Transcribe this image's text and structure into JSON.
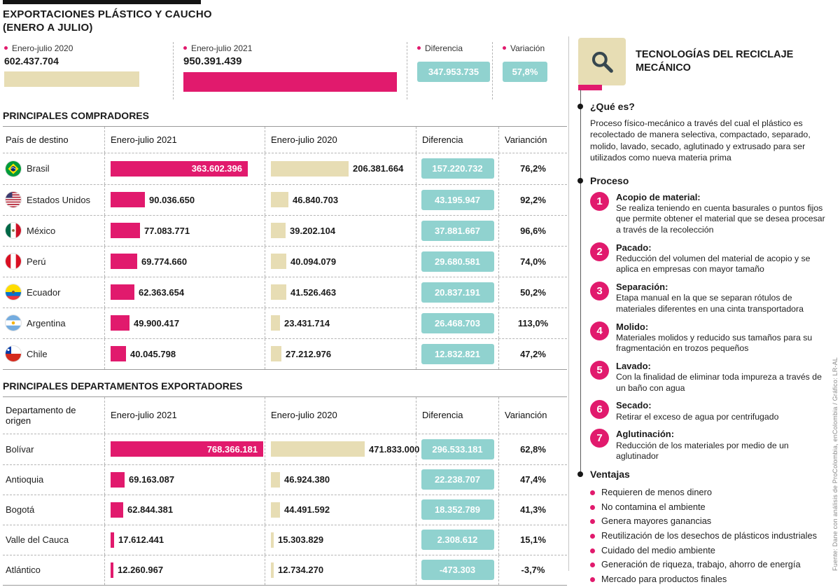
{
  "colors": {
    "pink": "#e11a6d",
    "beige": "#e7ddb4",
    "teal": "#90d2cf"
  },
  "header": {
    "title": "EXPORTACIONES PLÁSTICO Y CAUCHO",
    "subtitle": "(ENERO A JULIO)"
  },
  "summary": [
    {
      "label": "Enero-julio 2020",
      "value": "602.437.704",
      "num": 602437704
    },
    {
      "label": "Enero-julio 2021",
      "value": "950.391.439",
      "num": 950391439
    },
    {
      "label": "Diferencia",
      "value": "347.953.735"
    },
    {
      "label": "Variación",
      "value": "57,8%"
    }
  ],
  "tables": [
    {
      "title": "PRINCIPALES COMPRADORES",
      "headers": {
        "label": "País de destino",
        "c2021": "Enero-julio 2021",
        "c2020": "Enero-julio 2020",
        "diff": "Diferencia",
        "var": "Varianción"
      },
      "scale": {
        "max": 363602396,
        "maxw": 196
      },
      "rows": [
        {
          "flag": "brasil",
          "label": "Brasil",
          "v2021": "363.602.396",
          "n2021": 363602396,
          "v2020": "206.381.664",
          "n2020": 206381664,
          "diff": "157.220.732",
          "var": "76,2%",
          "inside2021": true
        },
        {
          "flag": "usa",
          "label": "Estados Unidos",
          "v2021": "90.036.650",
          "n2021": 90036650,
          "v2020": "46.840.703",
          "n2020": 46840703,
          "diff": "43.195.947",
          "var": "92,2%",
          "inside2021": false
        },
        {
          "flag": "mexico",
          "label": "México",
          "v2021": "77.083.771",
          "n2021": 77083771,
          "v2020": "39.202.104",
          "n2020": 39202104,
          "diff": "37.881.667",
          "var": "96,6%",
          "inside2021": false
        },
        {
          "flag": "peru",
          "label": "Perú",
          "v2021": "69.774.660",
          "n2021": 69774660,
          "v2020": "40.094.079",
          "n2020": 40094079,
          "diff": "29.680.581",
          "var": "74,0%",
          "inside2021": false
        },
        {
          "flag": "ecuador",
          "label": "Ecuador",
          "v2021": "62.363.654",
          "n2021": 62363654,
          "v2020": "41.526.463",
          "n2020": 41526463,
          "diff": "20.837.191",
          "var": "50,2%",
          "inside2021": false
        },
        {
          "flag": "argentina",
          "label": "Argentina",
          "v2021": "49.900.417",
          "n2021": 49900417,
          "v2020": "23.431.714",
          "n2020": 23431714,
          "diff": "26.468.703",
          "var": "113,0%",
          "inside2021": false
        },
        {
          "flag": "chile",
          "label": "Chile",
          "v2021": "40.045.798",
          "n2021": 40045798,
          "v2020": "27.212.976",
          "n2020": 27212976,
          "diff": "12.832.821",
          "var": "47,2%",
          "inside2021": false
        }
      ]
    },
    {
      "title": "PRINCIPALES DEPARTAMENTOS EXPORTADORES",
      "headers": {
        "label": "Departamento de origen",
        "c2021": "Enero-julio 2021",
        "c2020": "Enero-julio 2020",
        "diff": "Diferencia",
        "var": "Varianción"
      },
      "scale": {
        "max": 768366181,
        "maxw": 218
      },
      "rows": [
        {
          "flag": null,
          "label": "Bolívar",
          "v2021": "768.366.181",
          "n2021": 768366181,
          "v2020": "471.833.000",
          "n2020": 471833000,
          "diff": "296.533.181",
          "var": "62,8%",
          "inside2021": true
        },
        {
          "flag": null,
          "label": "Antioquia",
          "v2021": "69.163.087",
          "n2021": 69163087,
          "v2020": "46.924.380",
          "n2020": 46924380,
          "diff": "22.238.707",
          "var": "47,4%",
          "inside2021": false
        },
        {
          "flag": null,
          "label": "Bogotá",
          "v2021": "62.844.381",
          "n2021": 62844381,
          "v2020": "44.491.592",
          "n2020": 44491592,
          "diff": "18.352.789",
          "var": "41,3%",
          "inside2021": false
        },
        {
          "flag": null,
          "label": "Valle del Cauca",
          "v2021": "17.612.441",
          "n2021": 17612441,
          "v2020": "15.303.829",
          "n2020": 15303829,
          "diff": "2.308.612",
          "var": "15,1%",
          "inside2021": false
        },
        {
          "flag": null,
          "label": "Atlántico",
          "v2021": "12.260.967",
          "n2021": 12260967,
          "v2020": "12.734.270",
          "n2020": 12734270,
          "diff": "-473.303",
          "var": "-3,7%",
          "inside2021": false
        }
      ]
    }
  ],
  "panel": {
    "title": "TECNOLOGÍAS DEL RECICLAJE MECÁNICO",
    "que_es": {
      "title": "¿Qué es?",
      "text": "Proceso físico-mecánico a través del cual el plástico es recolectado de manera selectiva, compactado, separado, molido, lavado, secado, aglutinado y extrusado para ser utilizados como nueva materia prima"
    },
    "proceso": {
      "title": "Proceso",
      "steps": [
        {
          "n": "1",
          "title": "Acopio de material:",
          "text": "Se realiza teniendo en cuenta basurales o puntos fijos que permite obtener el material que se desea procesar a través de la recolección"
        },
        {
          "n": "2",
          "title": "Pacado:",
          "text": "Reducción del volumen del material de acopio y se aplica en empresas con mayor tamaño"
        },
        {
          "n": "3",
          "title": "Separación:",
          "text": "Etapa manual en la que se separan rótulos de materiales diferentes en una cinta transportadora"
        },
        {
          "n": "4",
          "title": "Molido:",
          "text": "Materiales molidos y reducido sus tamaños para su fragmentación en trozos pequeños"
        },
        {
          "n": "5",
          "title": "Lavado:",
          "text": "Con la finalidad de eliminar toda impureza a través de un baño con agua"
        },
        {
          "n": "6",
          "title": "Secado:",
          "text": "Retirar el exceso de agua por centrifugado"
        },
        {
          "n": "7",
          "title": "Aglutinación:",
          "text": "Reducción de los materiales por medio de un aglutinador"
        }
      ]
    },
    "ventajas": {
      "title": "Ventajas",
      "items": [
        "Requieren de menos dinero",
        "No contamina el ambiente",
        "Genera mayores ganancias",
        "Reutilización de los desechos de plásticos industriales",
        "Cuidado del medio ambiente",
        "Generación de riqueza, trabajo, ahorro de energía",
        "Mercado para productos finales"
      ]
    }
  },
  "source": "Fuente: Dane con análisis de ProColombia, enColombia / Gráfico: LR-AL",
  "chart_data": [
    {
      "type": "bar",
      "title": "Exportaciones plástico y caucho (enero a julio)",
      "categories": [
        "Enero-julio 2020",
        "Enero-julio 2021"
      ],
      "values": [
        602437704,
        950391439
      ],
      "annotations": {
        "diferencia": 347953735,
        "variacion": "57,8%"
      },
      "orientation": "horizontal",
      "grid": false
    },
    {
      "type": "bar",
      "title": "Principales compradores",
      "categories": [
        "Brasil",
        "Estados Unidos",
        "México",
        "Perú",
        "Ecuador",
        "Argentina",
        "Chile"
      ],
      "series": [
        {
          "name": "Enero-julio 2021",
          "values": [
            363602396,
            90036650,
            77083771,
            69774660,
            62363654,
            49900417,
            40045798
          ]
        },
        {
          "name": "Enero-julio 2020",
          "values": [
            206381664,
            46840703,
            39202104,
            40094079,
            41526463,
            23431714,
            27212976
          ]
        },
        {
          "name": "Diferencia",
          "values": [
            157220732,
            43195947,
            37881667,
            29680581,
            20837191,
            26468703,
            12832821
          ]
        },
        {
          "name": "Varianción",
          "values": [
            "76,2%",
            "92,2%",
            "96,6%",
            "74,0%",
            "50,2%",
            "113,0%",
            "47,2%"
          ]
        }
      ],
      "orientation": "horizontal",
      "grid": false,
      "xlim": [
        0,
        363602396
      ]
    },
    {
      "type": "bar",
      "title": "Principales departamentos exportadores",
      "categories": [
        "Bolívar",
        "Antioquia",
        "Bogotá",
        "Valle del Cauca",
        "Atlántico"
      ],
      "series": [
        {
          "name": "Enero-julio 2021",
          "values": [
            768366181,
            69163087,
            62844381,
            17612441,
            12260967
          ]
        },
        {
          "name": "Enero-julio 2020",
          "values": [
            471833000,
            46924380,
            44491592,
            15303829,
            12734270
          ]
        },
        {
          "name": "Diferencia",
          "values": [
            296533181,
            22238707,
            18352789,
            2308612,
            -473303
          ]
        },
        {
          "name": "Varianción",
          "values": [
            "62,8%",
            "47,4%",
            "41,3%",
            "15,1%",
            "-3,7%"
          ]
        }
      ],
      "orientation": "horizontal",
      "grid": false,
      "xlim": [
        0,
        768366181
      ]
    }
  ]
}
